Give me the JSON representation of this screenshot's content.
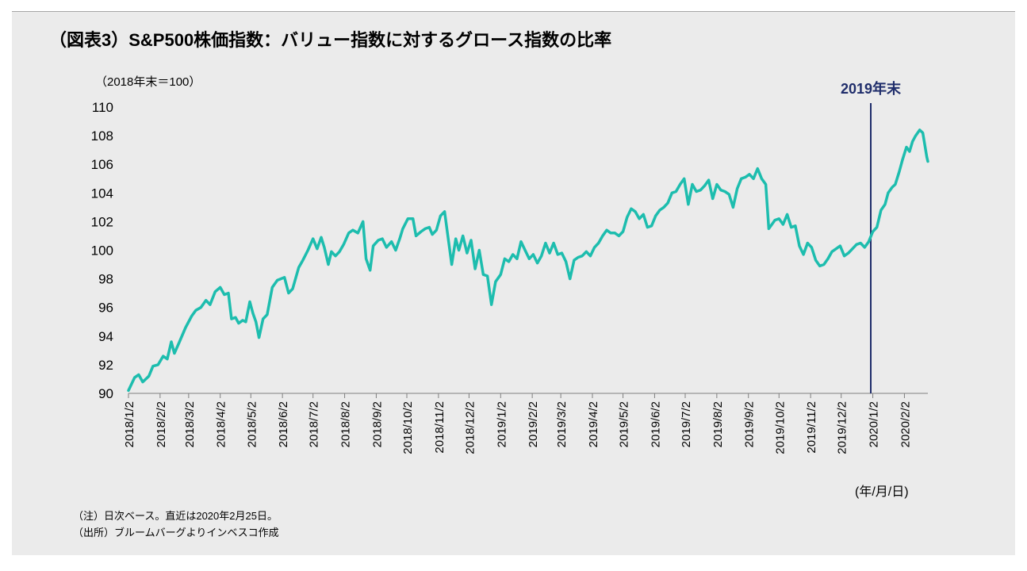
{
  "title": "（図表3）S&P500株価指数：バリュー指数に対するグロース指数の比率",
  "unit_label": "（2018年末＝100）",
  "x_unit_label": "(年/月/日)",
  "notes": [
    "（注）日次ベース。直近は2020年2月25日。",
    "（出所）ブルームバーグよりインベスコ作成"
  ],
  "colors": {
    "line": "#1dbdae",
    "marker": "#1f2d6b",
    "marker_label": "#1f2d6b",
    "panel": "#ebebeb"
  },
  "chart_data": {
    "type": "line",
    "title": "",
    "xlabel": "(年/月/日)",
    "ylabel": "（2018年末＝100）",
    "ylim": [
      90,
      110
    ],
    "yticks": [
      90,
      92,
      94,
      96,
      98,
      100,
      102,
      104,
      106,
      108,
      110
    ],
    "xlim": [
      "2018-01-02",
      "2020-02-25"
    ],
    "xticks": [
      {
        "date": "2018-01-02",
        "label": "2018/1/2"
      },
      {
        "date": "2018-02-02",
        "label": "2018/2/2"
      },
      {
        "date": "2018-03-02",
        "label": "2018/3/2"
      },
      {
        "date": "2018-04-02",
        "label": "2018/4/2"
      },
      {
        "date": "2018-05-02",
        "label": "2018/5/2"
      },
      {
        "date": "2018-06-02",
        "label": "2018/6/2"
      },
      {
        "date": "2018-07-02",
        "label": "2018/7/2"
      },
      {
        "date": "2018-08-02",
        "label": "2018/8/2"
      },
      {
        "date": "2018-09-02",
        "label": "2018/9/2"
      },
      {
        "date": "2018-10-02",
        "label": "2018/10/2"
      },
      {
        "date": "2018-11-02",
        "label": "2018/11/2"
      },
      {
        "date": "2018-12-02",
        "label": "2018/12/2"
      },
      {
        "date": "2019-01-02",
        "label": "2019/1/2"
      },
      {
        "date": "2019-02-02",
        "label": "2019/2/2"
      },
      {
        "date": "2019-03-02",
        "label": "2019/3/2"
      },
      {
        "date": "2019-04-02",
        "label": "2019/4/2"
      },
      {
        "date": "2019-05-02",
        "label": "2019/5/2"
      },
      {
        "date": "2019-06-02",
        "label": "2019/6/2"
      },
      {
        "date": "2019-07-02",
        "label": "2019/7/2"
      },
      {
        "date": "2019-08-02",
        "label": "2019/8/2"
      },
      {
        "date": "2019-09-02",
        "label": "2019/9/2"
      },
      {
        "date": "2019-10-02",
        "label": "2019/10/2"
      },
      {
        "date": "2019-11-02",
        "label": "2019/11/2"
      },
      {
        "date": "2019-12-02",
        "label": "2019/12/2"
      },
      {
        "date": "2020-01-02",
        "label": "2020/1/2"
      },
      {
        "date": "2020-02-02",
        "label": "2020/2/2"
      }
    ],
    "annotation": {
      "date": "2019-12-31",
      "label": "2019年末"
    },
    "series": [
      {
        "points": [
          [
            "2018-01-02",
            90.2
          ],
          [
            "2018-01-08",
            91.1
          ],
          [
            "2018-01-12",
            91.3
          ],
          [
            "2018-01-16",
            90.8
          ],
          [
            "2018-01-22",
            91.2
          ],
          [
            "2018-01-26",
            91.9
          ],
          [
            "2018-01-31",
            92.0
          ],
          [
            "2018-02-05",
            92.6
          ],
          [
            "2018-02-09",
            92.4
          ],
          [
            "2018-02-13",
            93.6
          ],
          [
            "2018-02-16",
            92.8
          ],
          [
            "2018-02-21",
            93.6
          ],
          [
            "2018-02-27",
            94.6
          ],
          [
            "2018-03-05",
            95.4
          ],
          [
            "2018-03-09",
            95.8
          ],
          [
            "2018-03-14",
            96.0
          ],
          [
            "2018-03-19",
            96.5
          ],
          [
            "2018-03-23",
            96.2
          ],
          [
            "2018-03-28",
            97.1
          ],
          [
            "2018-04-02",
            97.4
          ],
          [
            "2018-04-06",
            96.9
          ],
          [
            "2018-04-10",
            97.0
          ],
          [
            "2018-04-13",
            95.2
          ],
          [
            "2018-04-17",
            95.3
          ],
          [
            "2018-04-20",
            94.9
          ],
          [
            "2018-04-24",
            95.1
          ],
          [
            "2018-04-27",
            95.0
          ],
          [
            "2018-05-01",
            96.4
          ],
          [
            "2018-05-04",
            95.6
          ],
          [
            "2018-05-07",
            95.0
          ],
          [
            "2018-05-10",
            93.9
          ],
          [
            "2018-05-14",
            95.2
          ],
          [
            "2018-05-18",
            95.5
          ],
          [
            "2018-05-23",
            97.4
          ],
          [
            "2018-05-28",
            97.9
          ],
          [
            "2018-06-04",
            98.1
          ],
          [
            "2018-06-08",
            97.0
          ],
          [
            "2018-06-12",
            97.3
          ],
          [
            "2018-06-18",
            98.8
          ],
          [
            "2018-06-22",
            99.3
          ],
          [
            "2018-06-27",
            100.0
          ],
          [
            "2018-07-02",
            100.8
          ],
          [
            "2018-07-06",
            100.1
          ],
          [
            "2018-07-10",
            100.9
          ],
          [
            "2018-07-13",
            100.2
          ],
          [
            "2018-07-17",
            99.0
          ],
          [
            "2018-07-20",
            99.9
          ],
          [
            "2018-07-24",
            99.6
          ],
          [
            "2018-07-28",
            99.9
          ],
          [
            "2018-08-01",
            100.4
          ],
          [
            "2018-08-06",
            101.2
          ],
          [
            "2018-08-10",
            101.4
          ],
          [
            "2018-08-15",
            101.2
          ],
          [
            "2018-08-20",
            102.0
          ],
          [
            "2018-08-23",
            99.4
          ],
          [
            "2018-08-27",
            98.6
          ],
          [
            "2018-08-30",
            100.3
          ],
          [
            "2018-09-04",
            100.7
          ],
          [
            "2018-09-08",
            100.8
          ],
          [
            "2018-09-12",
            100.2
          ],
          [
            "2018-09-17",
            100.6
          ],
          [
            "2018-09-21",
            100.0
          ],
          [
            "2018-09-25",
            100.8
          ],
          [
            "2018-09-28",
            101.5
          ],
          [
            "2018-10-03",
            102.2
          ],
          [
            "2018-10-08",
            102.2
          ],
          [
            "2018-10-11",
            101.0
          ],
          [
            "2018-10-16",
            101.3
          ],
          [
            "2018-10-20",
            101.5
          ],
          [
            "2018-10-24",
            101.6
          ],
          [
            "2018-10-27",
            101.1
          ],
          [
            "2018-10-31",
            101.4
          ],
          [
            "2018-11-04",
            102.4
          ],
          [
            "2018-11-08",
            102.7
          ],
          [
            "2018-11-12",
            100.6
          ],
          [
            "2018-11-15",
            99.0
          ],
          [
            "2018-11-19",
            100.8
          ],
          [
            "2018-11-22",
            100.0
          ],
          [
            "2018-11-26",
            101.0
          ],
          [
            "2018-11-30",
            99.8
          ],
          [
            "2018-12-04",
            100.7
          ],
          [
            "2018-12-08",
            98.7
          ],
          [
            "2018-12-12",
            100.0
          ],
          [
            "2018-12-16",
            98.3
          ],
          [
            "2018-12-20",
            98.2
          ],
          [
            "2018-12-24",
            96.2
          ],
          [
            "2018-12-28",
            97.8
          ],
          [
            "2019-01-02",
            98.3
          ],
          [
            "2019-01-06",
            99.4
          ],
          [
            "2019-01-10",
            99.2
          ],
          [
            "2019-01-14",
            99.7
          ],
          [
            "2019-01-18",
            99.4
          ],
          [
            "2019-01-22",
            100.6
          ],
          [
            "2019-01-26",
            100.0
          ],
          [
            "2019-01-30",
            99.4
          ],
          [
            "2019-02-03",
            99.7
          ],
          [
            "2019-02-07",
            99.1
          ],
          [
            "2019-02-11",
            99.6
          ],
          [
            "2019-02-15",
            100.5
          ],
          [
            "2019-02-19",
            99.8
          ],
          [
            "2019-02-23",
            100.5
          ],
          [
            "2019-02-27",
            99.7
          ],
          [
            "2019-03-03",
            99.8
          ],
          [
            "2019-03-07",
            99.2
          ],
          [
            "2019-03-11",
            98.0
          ],
          [
            "2019-03-15",
            99.3
          ],
          [
            "2019-03-19",
            99.5
          ],
          [
            "2019-03-23",
            99.6
          ],
          [
            "2019-03-27",
            99.9
          ],
          [
            "2019-03-31",
            99.6
          ],
          [
            "2019-04-04",
            100.2
          ],
          [
            "2019-04-08",
            100.5
          ],
          [
            "2019-04-12",
            101.0
          ],
          [
            "2019-04-16",
            101.4
          ],
          [
            "2019-04-20",
            101.2
          ],
          [
            "2019-04-24",
            101.2
          ],
          [
            "2019-04-28",
            101.0
          ],
          [
            "2019-05-02",
            101.3
          ],
          [
            "2019-05-06",
            102.3
          ],
          [
            "2019-05-10",
            102.9
          ],
          [
            "2019-05-14",
            102.7
          ],
          [
            "2019-05-18",
            102.2
          ],
          [
            "2019-05-22",
            102.5
          ],
          [
            "2019-05-26",
            101.6
          ],
          [
            "2019-05-30",
            101.7
          ],
          [
            "2019-06-03",
            102.4
          ],
          [
            "2019-06-07",
            102.8
          ],
          [
            "2019-06-11",
            103.0
          ],
          [
            "2019-06-15",
            103.3
          ],
          [
            "2019-06-19",
            104.0
          ],
          [
            "2019-06-23",
            104.1
          ],
          [
            "2019-06-27",
            104.6
          ],
          [
            "2019-07-01",
            105.0
          ],
          [
            "2019-07-05",
            103.2
          ],
          [
            "2019-07-09",
            104.6
          ],
          [
            "2019-07-13",
            104.1
          ],
          [
            "2019-07-17",
            104.2
          ],
          [
            "2019-07-21",
            104.5
          ],
          [
            "2019-07-25",
            104.9
          ],
          [
            "2019-07-29",
            103.6
          ],
          [
            "2019-08-02",
            104.6
          ],
          [
            "2019-08-06",
            104.2
          ],
          [
            "2019-08-10",
            104.1
          ],
          [
            "2019-08-14",
            103.9
          ],
          [
            "2019-08-18",
            103.0
          ],
          [
            "2019-08-22",
            104.3
          ],
          [
            "2019-08-26",
            105.0
          ],
          [
            "2019-08-30",
            105.1
          ],
          [
            "2019-09-03",
            105.3
          ],
          [
            "2019-09-07",
            105.0
          ],
          [
            "2019-09-11",
            105.7
          ],
          [
            "2019-09-15",
            105.0
          ],
          [
            "2019-09-19",
            104.6
          ],
          [
            "2019-09-22",
            101.5
          ],
          [
            "2019-09-25",
            101.8
          ],
          [
            "2019-09-28",
            102.1
          ],
          [
            "2019-10-02",
            102.2
          ],
          [
            "2019-10-06",
            101.8
          ],
          [
            "2019-10-10",
            102.5
          ],
          [
            "2019-10-14",
            101.6
          ],
          [
            "2019-10-18",
            101.7
          ],
          [
            "2019-10-22",
            100.3
          ],
          [
            "2019-10-26",
            99.7
          ],
          [
            "2019-10-30",
            100.5
          ],
          [
            "2019-11-03",
            100.2
          ],
          [
            "2019-11-07",
            99.3
          ],
          [
            "2019-11-11",
            98.9
          ],
          [
            "2019-11-15",
            99.0
          ],
          [
            "2019-11-19",
            99.4
          ],
          [
            "2019-11-23",
            99.9
          ],
          [
            "2019-11-27",
            100.1
          ],
          [
            "2019-12-01",
            100.3
          ],
          [
            "2019-12-05",
            99.6
          ],
          [
            "2019-12-09",
            99.8
          ],
          [
            "2019-12-13",
            100.1
          ],
          [
            "2019-12-17",
            100.4
          ],
          [
            "2019-12-21",
            100.5
          ],
          [
            "2019-12-25",
            100.2
          ],
          [
            "2019-12-29",
            100.6
          ],
          [
            "2020-01-02",
            101.3
          ],
          [
            "2020-01-06",
            101.6
          ],
          [
            "2020-01-10",
            102.8
          ],
          [
            "2020-01-14",
            103.2
          ],
          [
            "2020-01-17",
            104.0
          ],
          [
            "2020-01-21",
            104.4
          ],
          [
            "2020-01-24",
            104.6
          ],
          [
            "2020-01-28",
            105.5
          ],
          [
            "2020-01-31",
            106.3
          ],
          [
            "2020-02-04",
            107.2
          ],
          [
            "2020-02-07",
            106.9
          ],
          [
            "2020-02-10",
            107.6
          ],
          [
            "2020-02-13",
            108.0
          ],
          [
            "2020-02-17",
            108.4
          ],
          [
            "2020-02-20",
            108.2
          ],
          [
            "2020-02-24",
            106.5
          ],
          [
            "2020-02-25",
            106.2
          ]
        ]
      }
    ]
  }
}
